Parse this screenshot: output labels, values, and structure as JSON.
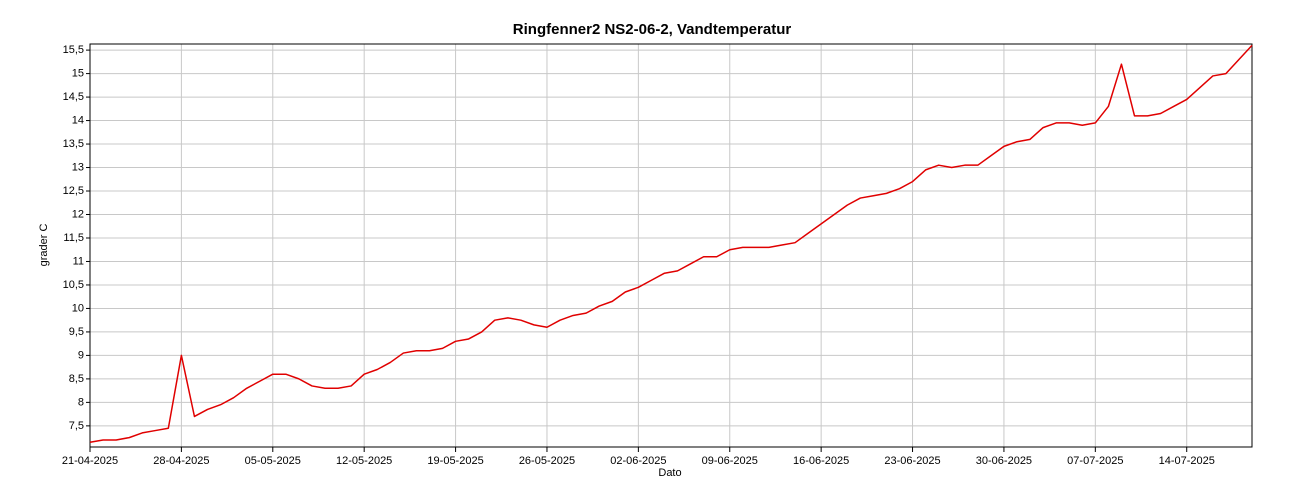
{
  "chart_data": {
    "type": "line",
    "title": "Ringfenner2 NS2-06-2, Vandtemperatur",
    "x_label": "Dato",
    "y_label": "grader C",
    "x": [
      "21-04-2025",
      "22-04-2025",
      "23-04-2025",
      "24-04-2025",
      "25-04-2025",
      "26-04-2025",
      "27-04-2025",
      "28-04-2025",
      "29-04-2025",
      "30-04-2025",
      "01-05-2025",
      "02-05-2025",
      "03-05-2025",
      "04-05-2025",
      "05-05-2025",
      "06-05-2025",
      "07-05-2025",
      "08-05-2025",
      "09-05-2025",
      "10-05-2025",
      "11-05-2025",
      "12-05-2025",
      "13-05-2025",
      "14-05-2025",
      "15-05-2025",
      "16-05-2025",
      "17-05-2025",
      "18-05-2025",
      "19-05-2025",
      "20-05-2025",
      "21-05-2025",
      "22-05-2025",
      "23-05-2025",
      "24-05-2025",
      "25-05-2025",
      "26-05-2025",
      "27-05-2025",
      "28-05-2025",
      "29-05-2025",
      "30-05-2025",
      "31-05-2025",
      "01-06-2025",
      "02-06-2025",
      "03-06-2025",
      "04-06-2025",
      "05-06-2025",
      "06-06-2025",
      "07-06-2025",
      "08-06-2025",
      "09-06-2025",
      "10-06-2025",
      "11-06-2025",
      "12-06-2025",
      "13-06-2025",
      "14-06-2025",
      "15-06-2025",
      "16-06-2025",
      "17-06-2025",
      "18-06-2025",
      "19-06-2025",
      "20-06-2025",
      "21-06-2025",
      "22-06-2025",
      "23-06-2025",
      "24-06-2025",
      "25-06-2025",
      "26-06-2025",
      "27-06-2025",
      "28-06-2025",
      "29-06-2025",
      "30-06-2025",
      "01-07-2025",
      "02-07-2025",
      "03-07-2025",
      "04-07-2025",
      "05-07-2025",
      "06-07-2025",
      "07-07-2025",
      "08-07-2025",
      "09-07-2025",
      "10-07-2025",
      "11-07-2025",
      "12-07-2025",
      "13-07-2025",
      "14-07-2025",
      "15-07-2025",
      "16-07-2025",
      "17-07-2025",
      "18-07-2025",
      "19-07-2025"
    ],
    "series": [
      {
        "name": "Vandtemperatur",
        "color": "#e00000",
        "values": [
          7.15,
          7.2,
          7.2,
          7.25,
          7.35,
          7.4,
          7.45,
          9.0,
          7.7,
          7.85,
          7.95,
          8.1,
          8.3,
          8.45,
          8.6,
          8.6,
          8.5,
          8.35,
          8.3,
          8.3,
          8.35,
          8.6,
          8.7,
          8.85,
          9.05,
          9.1,
          9.1,
          9.15,
          9.3,
          9.35,
          9.5,
          9.75,
          9.8,
          9.75,
          9.65,
          9.6,
          9.75,
          9.85,
          9.9,
          10.05,
          10.15,
          10.35,
          10.45,
          10.6,
          10.75,
          10.8,
          10.95,
          11.1,
          11.1,
          11.25,
          11.3,
          11.3,
          11.3,
          11.35,
          11.4,
          11.6,
          11.8,
          12.0,
          12.2,
          12.35,
          12.4,
          12.45,
          12.55,
          12.7,
          12.95,
          13.05,
          13.0,
          13.05,
          13.05,
          13.25,
          13.45,
          13.55,
          13.6,
          13.85,
          13.95,
          13.95,
          13.9,
          13.95,
          14.3,
          15.2,
          14.1,
          14.1,
          14.15,
          14.3,
          14.45,
          14.7,
          14.95,
          15.0,
          15.3,
          15.6
        ]
      }
    ],
    "xlim": [
      "21-04-2025",
      "19-07-2025"
    ],
    "xticks": [
      "21-04-2025",
      "28-04-2025",
      "05-05-2025",
      "12-05-2025",
      "19-05-2025",
      "26-05-2025",
      "02-06-2025",
      "09-06-2025",
      "16-06-2025",
      "23-06-2025",
      "30-06-2025",
      "07-07-2025",
      "14-07-2025"
    ],
    "ylim": [
      7.05,
      15.63
    ],
    "yticks": [
      {
        "value": 7.5,
        "label": "7,5"
      },
      8,
      {
        "value": 8.5,
        "label": "8,5"
      },
      9,
      {
        "value": 9.5,
        "label": "9,5"
      },
      10,
      {
        "value": 10.5,
        "label": "10,5"
      },
      11,
      {
        "value": 11.5,
        "label": "11,5"
      },
      12,
      {
        "value": 12.5,
        "label": "12,5"
      },
      13,
      {
        "value": 13.5,
        "label": "13,5"
      },
      14,
      {
        "value": 14.5,
        "label": "14,5"
      },
      15,
      {
        "value": 15.5,
        "label": "15,5"
      }
    ],
    "grid": true
  }
}
